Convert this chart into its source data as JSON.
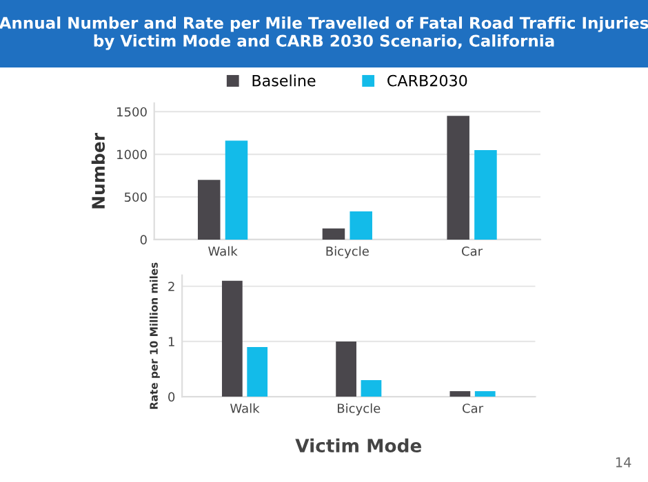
{
  "chart_data": [
    {
      "type": "bar",
      "title": "Annual Number and Rate per Mile Travelled of Fatal Road Traffic Injuries\nby Victim Mode and CARB 2030 Scenario, California",
      "ylabel": "Number",
      "categories": [
        "Walk",
        "Bicycle",
        "Car"
      ],
      "series": [
        {
          "name": "Baseline",
          "color": "#4a474c",
          "values": [
            700,
            130,
            1450
          ]
        },
        {
          "name": "CARB2030",
          "color": "#13bbe9",
          "values": [
            1160,
            330,
            1050
          ]
        }
      ],
      "ylim": [
        0,
        1600
      ],
      "yticks": [
        0,
        500,
        1000,
        1500
      ],
      "grid": "y",
      "legend": "top"
    },
    {
      "type": "bar",
      "ylabel": "Rate per 10 Million miles",
      "xlabel": "Victim Mode",
      "categories": [
        "Walk",
        "Bicycle",
        "Car"
      ],
      "series": [
        {
          "color": "#4a474c",
          "values": [
            2.1,
            1.0,
            0.1
          ]
        },
        {
          "color": "#13bbe9",
          "values": [
            0.9,
            0.3,
            0.1
          ]
        }
      ],
      "ylim": [
        0,
        2.2
      ],
      "yticks": [
        0,
        1,
        2
      ],
      "grid": "y",
      "annotations": [
        "14"
      ]
    }
  ]
}
